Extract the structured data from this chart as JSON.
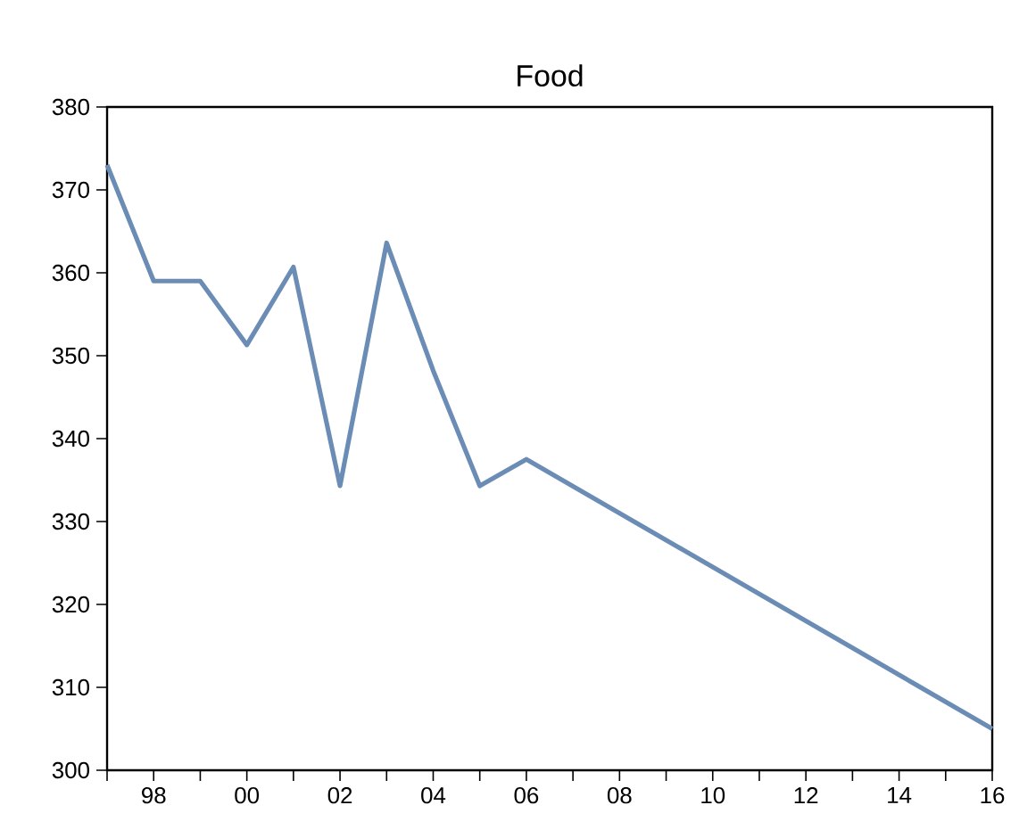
{
  "chart_data": {
    "type": "line",
    "title": "Food",
    "x": [
      1997,
      1998,
      1999,
      2000,
      2001,
      2002,
      2003,
      2004,
      2005,
      2006,
      2016
    ],
    "series": [
      {
        "color": "#6a8cb5",
        "values": [
          373,
          359,
          359,
          351.3,
          360.7,
          334.3,
          363.6,
          348.2,
          334.3,
          337.5,
          305
        ]
      }
    ],
    "xlim": [
      1997,
      2016
    ],
    "xticks": [
      {
        "value": 1997,
        "label": null
      },
      {
        "value": 1998,
        "label": "98"
      },
      {
        "value": 1999,
        "label": null
      },
      {
        "value": 2000,
        "label": "00"
      },
      {
        "value": 2001,
        "label": null
      },
      {
        "value": 2002,
        "label": "02"
      },
      {
        "value": 2003,
        "label": null
      },
      {
        "value": 2004,
        "label": "04"
      },
      {
        "value": 2005,
        "label": null
      },
      {
        "value": 2006,
        "label": "06"
      },
      {
        "value": 2007,
        "label": null
      },
      {
        "value": 2008,
        "label": "08"
      },
      {
        "value": 2009,
        "label": null
      },
      {
        "value": 2010,
        "label": "10"
      },
      {
        "value": 2011,
        "label": null
      },
      {
        "value": 2012,
        "label": "12"
      },
      {
        "value": 2013,
        "label": null
      },
      {
        "value": 2014,
        "label": "14"
      },
      {
        "value": 2015,
        "label": null
      },
      {
        "value": 2016,
        "label": "16"
      }
    ],
    "ylim": [
      300,
      380
    ],
    "yticks": [
      300,
      310,
      320,
      330,
      340,
      350,
      360,
      370,
      380
    ],
    "grid": false,
    "marker": "none",
    "line_style": "solid"
  }
}
